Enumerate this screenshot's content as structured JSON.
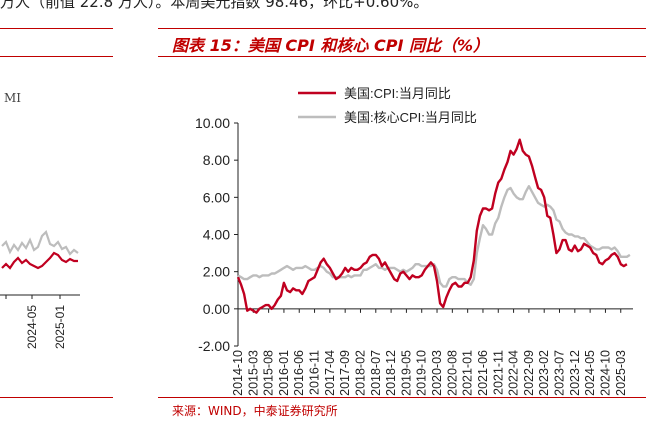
{
  "top_text": "万人（前值 22.8 万人）。本周美元指数 98.46，环比+0.60%。",
  "figure_title": "图表 15：美国 CPI 和核心 CPI 同比（%）",
  "source": "来源：WIND，中泰证券研究所",
  "left_panel": {
    "label": "MI",
    "x_tick_labels": [
      "2024-05",
      "2025-01"
    ],
    "colors": {
      "red": "#c00020",
      "gray": "#bdbdbd"
    }
  },
  "chart_data": {
    "type": "line",
    "title": "",
    "xlabel": "",
    "ylabel": "",
    "ylim": [
      -2.0,
      10.0
    ],
    "yticks": [
      "10.00",
      "8.00",
      "6.00",
      "4.00",
      "2.00",
      "0.00",
      "-2.00"
    ],
    "xlim": [
      "2014-10",
      "2025-07"
    ],
    "xticks": [
      "2014-10",
      "2015-03",
      "2015-08",
      "2016-01",
      "2016-06",
      "2016-11",
      "2017-04",
      "2017-09",
      "2018-02",
      "2018-07",
      "2018-12",
      "2019-05",
      "2019-10",
      "2020-03",
      "2020-08",
      "2021-01",
      "2021-06",
      "2021-11",
      "2022-04",
      "2022-09",
      "2023-02",
      "2023-07",
      "2023-12",
      "2024-05",
      "2024-10",
      "2025-03"
    ],
    "legend_position": "top-left",
    "grid": false,
    "series": [
      {
        "name": "美国:CPI:当月同比",
        "color": "#c00020",
        "points": [
          [
            "2014-10",
            1.7
          ],
          [
            "2014-11",
            1.3
          ],
          [
            "2014-12",
            0.8
          ],
          [
            "2015-01",
            -0.1
          ],
          [
            "2015-02",
            0.0
          ],
          [
            "2015-03",
            -0.1
          ],
          [
            "2015-04",
            -0.2
          ],
          [
            "2015-05",
            0.0
          ],
          [
            "2015-06",
            0.1
          ],
          [
            "2015-07",
            0.2
          ],
          [
            "2015-08",
            0.2
          ],
          [
            "2015-09",
            0.0
          ],
          [
            "2015-10",
            0.2
          ],
          [
            "2015-11",
            0.5
          ],
          [
            "2015-12",
            0.7
          ],
          [
            "2016-01",
            1.4
          ],
          [
            "2016-02",
            1.0
          ],
          [
            "2016-03",
            0.9
          ],
          [
            "2016-04",
            1.1
          ],
          [
            "2016-05",
            1.0
          ],
          [
            "2016-06",
            1.0
          ],
          [
            "2016-07",
            0.8
          ],
          [
            "2016-08",
            1.1
          ],
          [
            "2016-09",
            1.5
          ],
          [
            "2016-10",
            1.6
          ],
          [
            "2016-11",
            1.7
          ],
          [
            "2016-12",
            2.1
          ],
          [
            "2017-01",
            2.5
          ],
          [
            "2017-02",
            2.7
          ],
          [
            "2017-03",
            2.4
          ],
          [
            "2017-04",
            2.2
          ],
          [
            "2017-05",
            1.9
          ],
          [
            "2017-06",
            1.6
          ],
          [
            "2017-07",
            1.7
          ],
          [
            "2017-08",
            1.9
          ],
          [
            "2017-09",
            2.2
          ],
          [
            "2017-10",
            2.0
          ],
          [
            "2017-11",
            2.2
          ],
          [
            "2017-12",
            2.1
          ],
          [
            "2018-01",
            2.1
          ],
          [
            "2018-02",
            2.2
          ],
          [
            "2018-03",
            2.4
          ],
          [
            "2018-04",
            2.5
          ],
          [
            "2018-05",
            2.8
          ],
          [
            "2018-06",
            2.9
          ],
          [
            "2018-07",
            2.9
          ],
          [
            "2018-08",
            2.7
          ],
          [
            "2018-09",
            2.3
          ],
          [
            "2018-10",
            2.5
          ],
          [
            "2018-11",
            2.2
          ],
          [
            "2018-12",
            1.9
          ],
          [
            "2019-01",
            1.6
          ],
          [
            "2019-02",
            1.5
          ],
          [
            "2019-03",
            1.9
          ],
          [
            "2019-04",
            2.0
          ],
          [
            "2019-05",
            1.8
          ],
          [
            "2019-06",
            1.6
          ],
          [
            "2019-07",
            1.8
          ],
          [
            "2019-08",
            1.7
          ],
          [
            "2019-09",
            1.7
          ],
          [
            "2019-10",
            1.8
          ],
          [
            "2019-11",
            2.1
          ],
          [
            "2019-12",
            2.3
          ],
          [
            "2020-01",
            2.5
          ],
          [
            "2020-02",
            2.3
          ],
          [
            "2020-03",
            1.5
          ],
          [
            "2020-04",
            0.3
          ],
          [
            "2020-05",
            0.1
          ],
          [
            "2020-06",
            0.6
          ],
          [
            "2020-07",
            1.0
          ],
          [
            "2020-08",
            1.3
          ],
          [
            "2020-09",
            1.4
          ],
          [
            "2020-10",
            1.2
          ],
          [
            "2020-11",
            1.2
          ],
          [
            "2020-12",
            1.4
          ],
          [
            "2021-01",
            1.4
          ],
          [
            "2021-02",
            1.7
          ],
          [
            "2021-03",
            2.6
          ],
          [
            "2021-04",
            4.2
          ],
          [
            "2021-05",
            5.0
          ],
          [
            "2021-06",
            5.4
          ],
          [
            "2021-07",
            5.4
          ],
          [
            "2021-08",
            5.3
          ],
          [
            "2021-09",
            5.4
          ],
          [
            "2021-10",
            6.2
          ],
          [
            "2021-11",
            6.8
          ],
          [
            "2021-12",
            7.0
          ],
          [
            "2022-01",
            7.5
          ],
          [
            "2022-02",
            7.9
          ],
          [
            "2022-03",
            8.5
          ],
          [
            "2022-04",
            8.3
          ],
          [
            "2022-05",
            8.6
          ],
          [
            "2022-06",
            9.1
          ],
          [
            "2022-07",
            8.5
          ],
          [
            "2022-08",
            8.3
          ],
          [
            "2022-09",
            8.2
          ],
          [
            "2022-10",
            7.7
          ],
          [
            "2022-11",
            7.1
          ],
          [
            "2022-12",
            6.5
          ],
          [
            "2023-01",
            6.4
          ],
          [
            "2023-02",
            6.0
          ],
          [
            "2023-03",
            5.0
          ],
          [
            "2023-04",
            4.9
          ],
          [
            "2023-05",
            4.0
          ],
          [
            "2023-06",
            3.0
          ],
          [
            "2023-07",
            3.2
          ],
          [
            "2023-08",
            3.7
          ],
          [
            "2023-09",
            3.7
          ],
          [
            "2023-10",
            3.2
          ],
          [
            "2023-11",
            3.1
          ],
          [
            "2023-12",
            3.4
          ],
          [
            "2024-01",
            3.1
          ],
          [
            "2024-02",
            3.2
          ],
          [
            "2024-03",
            3.5
          ],
          [
            "2024-04",
            3.4
          ],
          [
            "2024-05",
            3.3
          ],
          [
            "2024-06",
            3.0
          ],
          [
            "2024-07",
            2.9
          ],
          [
            "2024-08",
            2.5
          ],
          [
            "2024-09",
            2.4
          ],
          [
            "2024-10",
            2.6
          ],
          [
            "2024-11",
            2.7
          ],
          [
            "2024-12",
            2.9
          ],
          [
            "2025-01",
            3.0
          ],
          [
            "2025-02",
            2.8
          ],
          [
            "2025-03",
            2.4
          ],
          [
            "2025-04",
            2.3
          ],
          [
            "2025-05",
            2.4
          ]
        ]
      },
      {
        "name": "美国:核心CPI:当月同比",
        "color": "#bdbdbd",
        "points": [
          [
            "2014-10",
            1.8
          ],
          [
            "2014-11",
            1.7
          ],
          [
            "2014-12",
            1.6
          ],
          [
            "2015-01",
            1.6
          ],
          [
            "2015-02",
            1.7
          ],
          [
            "2015-03",
            1.8
          ],
          [
            "2015-04",
            1.8
          ],
          [
            "2015-05",
            1.7
          ],
          [
            "2015-06",
            1.8
          ],
          [
            "2015-07",
            1.8
          ],
          [
            "2015-08",
            1.8
          ],
          [
            "2015-09",
            1.9
          ],
          [
            "2015-10",
            1.9
          ],
          [
            "2015-11",
            2.0
          ],
          [
            "2015-12",
            2.1
          ],
          [
            "2016-01",
            2.2
          ],
          [
            "2016-02",
            2.3
          ],
          [
            "2016-03",
            2.2
          ],
          [
            "2016-04",
            2.1
          ],
          [
            "2016-05",
            2.2
          ],
          [
            "2016-06",
            2.2
          ],
          [
            "2016-07",
            2.2
          ],
          [
            "2016-08",
            2.3
          ],
          [
            "2016-09",
            2.2
          ],
          [
            "2016-10",
            2.1
          ],
          [
            "2016-11",
            2.1
          ],
          [
            "2016-12",
            2.2
          ],
          [
            "2017-01",
            2.3
          ],
          [
            "2017-02",
            2.2
          ],
          [
            "2017-03",
            2.0
          ],
          [
            "2017-04",
            1.9
          ],
          [
            "2017-05",
            1.7
          ],
          [
            "2017-06",
            1.7
          ],
          [
            "2017-07",
            1.7
          ],
          [
            "2017-08",
            1.7
          ],
          [
            "2017-09",
            1.7
          ],
          [
            "2017-10",
            1.8
          ],
          [
            "2017-11",
            1.7
          ],
          [
            "2017-12",
            1.8
          ],
          [
            "2018-01",
            1.8
          ],
          [
            "2018-02",
            1.8
          ],
          [
            "2018-03",
            2.1
          ],
          [
            "2018-04",
            2.1
          ],
          [
            "2018-05",
            2.2
          ],
          [
            "2018-06",
            2.3
          ],
          [
            "2018-07",
            2.4
          ],
          [
            "2018-08",
            2.2
          ],
          [
            "2018-09",
            2.2
          ],
          [
            "2018-10",
            2.1
          ],
          [
            "2018-11",
            2.2
          ],
          [
            "2018-12",
            2.2
          ],
          [
            "2019-01",
            2.2
          ],
          [
            "2019-02",
            2.1
          ],
          [
            "2019-03",
            2.0
          ],
          [
            "2019-04",
            2.1
          ],
          [
            "2019-05",
            2.0
          ],
          [
            "2019-06",
            2.1
          ],
          [
            "2019-07",
            2.2
          ],
          [
            "2019-08",
            2.4
          ],
          [
            "2019-09",
            2.4
          ],
          [
            "2019-10",
            2.3
          ],
          [
            "2019-11",
            2.3
          ],
          [
            "2019-12",
            2.3
          ],
          [
            "2020-01",
            2.3
          ],
          [
            "2020-02",
            2.4
          ],
          [
            "2020-03",
            2.1
          ],
          [
            "2020-04",
            1.4
          ],
          [
            "2020-05",
            1.2
          ],
          [
            "2020-06",
            1.2
          ],
          [
            "2020-07",
            1.6
          ],
          [
            "2020-08",
            1.7
          ],
          [
            "2020-09",
            1.7
          ],
          [
            "2020-10",
            1.6
          ],
          [
            "2020-11",
            1.6
          ],
          [
            "2020-12",
            1.6
          ],
          [
            "2021-01",
            1.4
          ],
          [
            "2021-02",
            1.3
          ],
          [
            "2021-03",
            1.6
          ],
          [
            "2021-04",
            3.0
          ],
          [
            "2021-05",
            3.8
          ],
          [
            "2021-06",
            4.5
          ],
          [
            "2021-07",
            4.3
          ],
          [
            "2021-08",
            4.0
          ],
          [
            "2021-09",
            4.0
          ],
          [
            "2021-10",
            4.6
          ],
          [
            "2021-11",
            4.9
          ],
          [
            "2021-12",
            5.5
          ],
          [
            "2022-01",
            6.0
          ],
          [
            "2022-02",
            6.4
          ],
          [
            "2022-03",
            6.5
          ],
          [
            "2022-04",
            6.2
          ],
          [
            "2022-05",
            6.0
          ],
          [
            "2022-06",
            5.9
          ],
          [
            "2022-07",
            5.9
          ],
          [
            "2022-08",
            6.3
          ],
          [
            "2022-09",
            6.6
          ],
          [
            "2022-10",
            6.3
          ],
          [
            "2022-11",
            6.0
          ],
          [
            "2022-12",
            5.7
          ],
          [
            "2023-01",
            5.6
          ],
          [
            "2023-02",
            5.5
          ],
          [
            "2023-03",
            5.6
          ],
          [
            "2023-04",
            5.5
          ],
          [
            "2023-05",
            5.3
          ],
          [
            "2023-06",
            4.8
          ],
          [
            "2023-07",
            4.7
          ],
          [
            "2023-08",
            4.3
          ],
          [
            "2023-09",
            4.1
          ],
          [
            "2023-10",
            4.0
          ],
          [
            "2023-11",
            4.0
          ],
          [
            "2023-12",
            3.9
          ],
          [
            "2024-01",
            3.9
          ],
          [
            "2024-02",
            3.8
          ],
          [
            "2024-03",
            3.8
          ],
          [
            "2024-04",
            3.6
          ],
          [
            "2024-05",
            3.4
          ],
          [
            "2024-06",
            3.3
          ],
          [
            "2024-07",
            3.2
          ],
          [
            "2024-08",
            3.2
          ],
          [
            "2024-09",
            3.3
          ],
          [
            "2024-10",
            3.3
          ],
          [
            "2024-11",
            3.3
          ],
          [
            "2024-12",
            3.2
          ],
          [
            "2025-01",
            3.3
          ],
          [
            "2025-02",
            3.1
          ],
          [
            "2025-03",
            2.8
          ],
          [
            "2025-04",
            2.8
          ],
          [
            "2025-05",
            2.8
          ],
          [
            "2025-06",
            2.9
          ]
        ]
      }
    ]
  }
}
